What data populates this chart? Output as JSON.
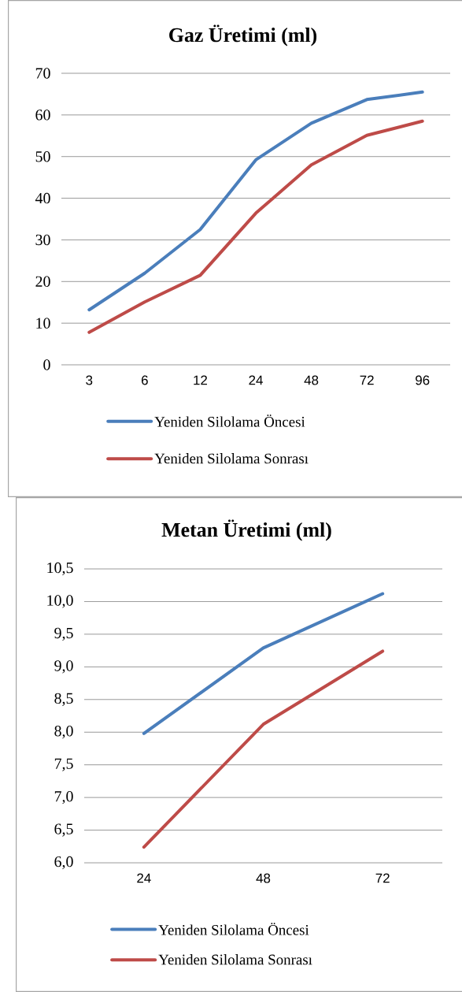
{
  "chart_data": [
    {
      "type": "line",
      "title": "Gaz Üretimi (ml)",
      "categories": [
        "3",
        "6",
        "12",
        "24",
        "48",
        "72",
        "96"
      ],
      "series": [
        {
          "name": "Yeniden Silolama Öncesi",
          "color": "#4a7ebb",
          "values": [
            13.2,
            22.0,
            32.5,
            49.2,
            58.0,
            63.7,
            65.5
          ]
        },
        {
          "name": "Yeniden Silolama Sonrası",
          "color": "#be4b48",
          "values": [
            7.8,
            15.1,
            21.5,
            36.4,
            48.0,
            55.1,
            58.5
          ]
        }
      ],
      "ylim": [
        0,
        70
      ],
      "yticks": [
        0,
        10,
        20,
        30,
        40,
        50,
        60,
        70
      ],
      "grid": "y",
      "legend": "bottom",
      "marker": "none",
      "line_style": "solid"
    },
    {
      "type": "line",
      "title": "Metan Üretimi (ml)",
      "categories": [
        "24",
        "48",
        "72"
      ],
      "series": [
        {
          "name": "Yeniden Silolama Öncesi",
          "color": "#4a7ebb",
          "values": [
            7.98,
            9.29,
            10.12
          ]
        },
        {
          "name": "Yeniden Silolama Sonrası",
          "color": "#be4b48",
          "values": [
            6.24,
            8.12,
            9.24
          ]
        }
      ],
      "ylim": [
        6,
        10.5
      ],
      "yticks": [
        {
          "value": 6,
          "label": "6,0"
        },
        {
          "value": 6.5,
          "label": "6,5"
        },
        {
          "value": 7,
          "label": "7,0"
        },
        {
          "value": 7.5,
          "label": "7,5"
        },
        {
          "value": 8,
          "label": "8,0"
        },
        {
          "value": 8.5,
          "label": "8,5"
        },
        {
          "value": 9,
          "label": "9,0"
        },
        {
          "value": 9.5,
          "label": "9,5"
        },
        {
          "value": 10,
          "label": "10,0"
        },
        {
          "value": 10.5,
          "label": "10,5"
        }
      ],
      "grid": "y",
      "legend": "bottom",
      "marker": "none",
      "line_style": "solid"
    }
  ]
}
